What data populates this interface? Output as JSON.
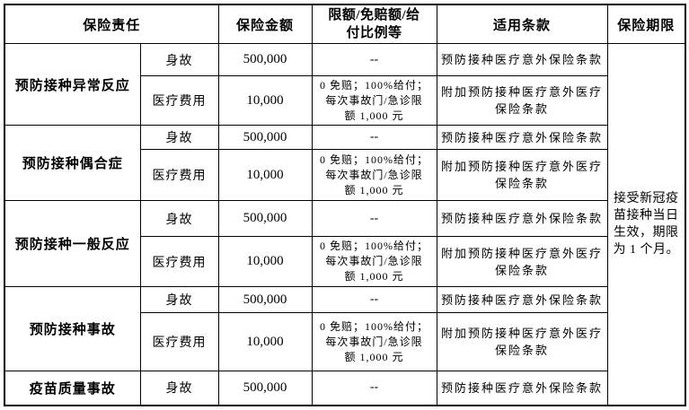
{
  "header": {
    "liability": "保险责任",
    "amount": "保险金额",
    "limits": "限额/免赔额/给\n付比例等",
    "terms": "适用条款",
    "period": "保险期限"
  },
  "period_note": "接受新冠疫\n苗接种当日\n生效，期限\n为 1 个月。",
  "groups": [
    {
      "liability": "预防接种异常反应",
      "rows": [
        {
          "type": "身故",
          "amount": "500,000",
          "limit": "--",
          "terms": "预防接种医疗意外保险条款"
        },
        {
          "type": "医疗费用",
          "amount": "10,000",
          "limit": "0 免赔；100%给付；\n每次事故门/急诊限\n额 1,000 元",
          "terms": "附加预防接种医疗意外医疗\n保险条款"
        }
      ]
    },
    {
      "liability": "预防接种偶合症",
      "rows": [
        {
          "type": "身故",
          "amount": "500,000",
          "limit": "--",
          "terms": "预防接种医疗意外保险条款"
        },
        {
          "type": "医疗费用",
          "amount": "10,000",
          "limit": "0 免赔；100%给付；\n每次事故门/急诊限\n额 1,000 元",
          "terms": "附加预防接种医疗意外医疗\n保险条款"
        }
      ]
    },
    {
      "liability": "预防接种一般反应",
      "rows": [
        {
          "type": "身故",
          "amount": "500,000",
          "limit": "--",
          "terms": "预防接种医疗意外保险条款"
        },
        {
          "type": "医疗费用",
          "amount": "10,000",
          "limit": "0 免赔；100%给付；\n每次事故门/急诊限\n额 1,000 元",
          "terms": "附加预防接种医疗意外医疗\n保险条款"
        }
      ]
    },
    {
      "liability": "预防接种事故",
      "rows": [
        {
          "type": "身故",
          "amount": "500,000",
          "limit": "--",
          "terms": "预防接种医疗意外保险条款"
        },
        {
          "type": "医疗费用",
          "amount": "10,000",
          "limit": "0 免赔；100%给付；\n每次事故门/急诊限\n额 1,000 元",
          "terms": "附加预防接种医疗意外医疗\n保险条款"
        }
      ]
    },
    {
      "liability": "疫苗质量事故",
      "rows": [
        {
          "type": "身故",
          "amount": "500,000",
          "limit": "--",
          "terms": "预防接种医疗意外保险条款"
        }
      ]
    }
  ]
}
